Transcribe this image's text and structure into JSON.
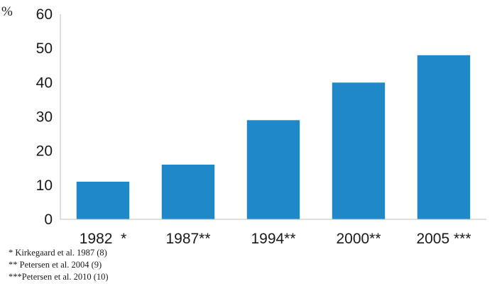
{
  "chart_data": {
    "type": "bar",
    "categories": [
      "1982  *",
      "1987**",
      "1994**",
      "2000**",
      "2005 ***"
    ],
    "values": [
      11,
      16,
      29,
      40,
      48
    ],
    "ylabel": "%",
    "ylim": [
      0,
      60
    ],
    "yticks": [
      0,
      10,
      20,
      30,
      40,
      50,
      60
    ],
    "bar_color": "#1f88c9",
    "grid": false,
    "footnotes": [
      "* Kirkegaard et al. 1987 (8)",
      "** Petersen et al. 2004 (9)",
      "***Petersen et al. 2010 (10)"
    ]
  }
}
